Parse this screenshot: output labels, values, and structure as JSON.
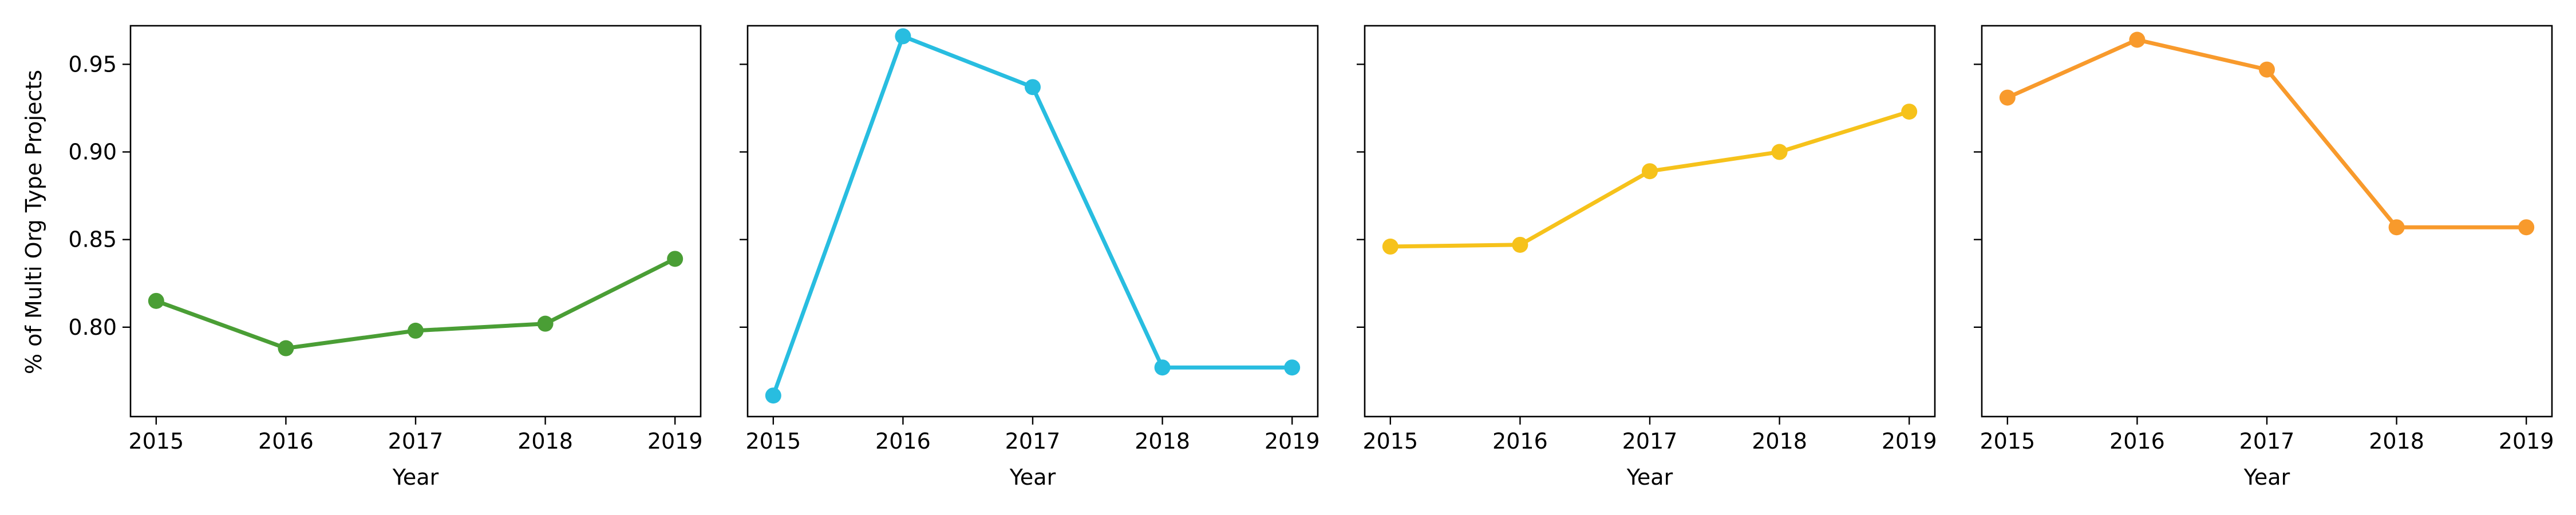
{
  "chart_data": [
    {
      "type": "line",
      "color": "#4a9e35",
      "x": [
        2015,
        2016,
        2017,
        2018,
        2019
      ],
      "values": [
        0.815,
        0.788,
        0.798,
        0.802,
        0.839
      ],
      "xlabel": "Year",
      "ylabel": "% of Multi Org Type Projects",
      "xticks": [
        "2015",
        "2016",
        "2017",
        "2018",
        "2019"
      ],
      "yticks": [
        "0.80",
        "0.85",
        "0.90",
        "0.95"
      ],
      "ylim": [
        0.749,
        0.972
      ],
      "grid": false
    },
    {
      "type": "line",
      "color": "#28bde0",
      "x": [
        2015,
        2016,
        2017,
        2018,
        2019
      ],
      "values": [
        0.761,
        0.966,
        0.937,
        0.777,
        0.777
      ],
      "xlabel": "Year",
      "xticks": [
        "2015",
        "2016",
        "2017",
        "2018",
        "2019"
      ],
      "ylim": [
        0.749,
        0.972
      ],
      "grid": false
    },
    {
      "type": "line",
      "color": "#f6c21b",
      "x": [
        2015,
        2016,
        2017,
        2018,
        2019
      ],
      "values": [
        0.846,
        0.847,
        0.889,
        0.9,
        0.923
      ],
      "xlabel": "Year",
      "xticks": [
        "2015",
        "2016",
        "2017",
        "2018",
        "2019"
      ],
      "ylim": [
        0.749,
        0.972
      ],
      "grid": false
    },
    {
      "type": "line",
      "color": "#f89a2c",
      "x": [
        2015,
        2016,
        2017,
        2018,
        2019
      ],
      "values": [
        0.931,
        0.964,
        0.947,
        0.857,
        0.857
      ],
      "xlabel": "Year",
      "xticks": [
        "2015",
        "2016",
        "2017",
        "2018",
        "2019"
      ],
      "ylim": [
        0.749,
        0.972
      ],
      "grid": false
    }
  ]
}
